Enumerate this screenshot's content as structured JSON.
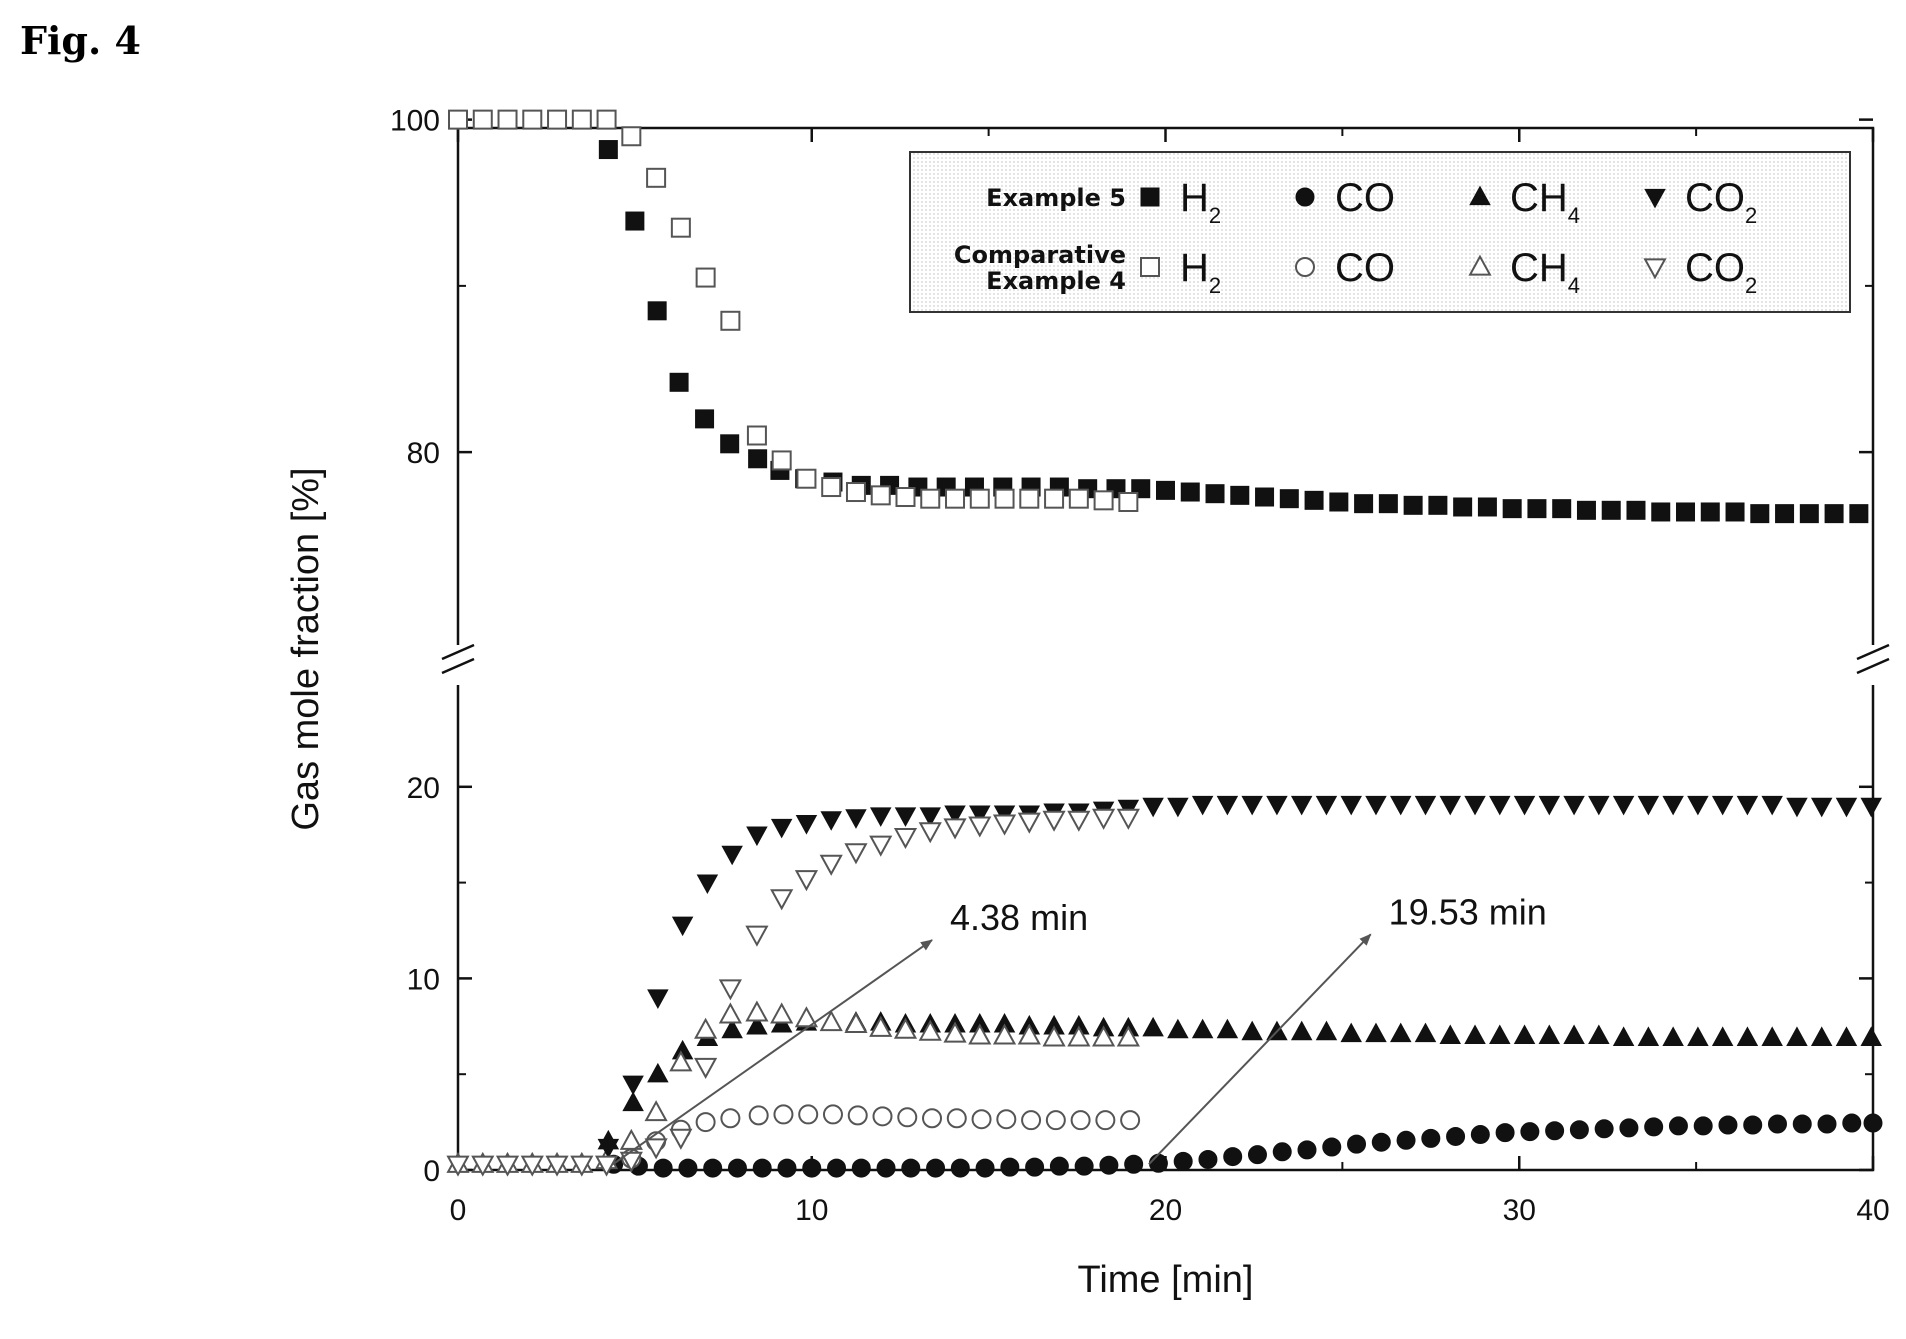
{
  "figure_label": "Fig. 4",
  "chart_data": {
    "type": "scatter",
    "xlabel": "Time [min]",
    "ylabel": "Gas mole fraction [%]",
    "xlim": [
      0,
      40
    ],
    "y_break": {
      "lower": [
        0,
        24
      ],
      "upper": [
        68,
        101
      ]
    },
    "x_ticks": [
      "0",
      "10",
      "20",
      "30",
      "40"
    ],
    "y_ticks": [
      "0",
      "10",
      "20",
      "80",
      "100"
    ],
    "legend": {
      "placement": "top-right",
      "groups": [
        {
          "label_lines": [
            "Example 5"
          ],
          "filled": true
        },
        {
          "label_lines": [
            "Comparative",
            "Example 4"
          ],
          "filled": false
        }
      ],
      "species": [
        {
          "base": "H",
          "sub": "2",
          "marker": "square"
        },
        {
          "base": "CO",
          "sub": "",
          "marker": "circle"
        },
        {
          "base": "CH",
          "sub": "4",
          "marker": "triangle-up"
        },
        {
          "base": "CO",
          "sub": "2",
          "marker": "triangle-down"
        }
      ]
    },
    "annotations": [
      {
        "text": "4.38 min",
        "from": [
          4.38,
          0.3
        ],
        "to": [
          13.4,
          12.0
        ]
      },
      {
        "text": "19.53 min",
        "from": [
          19.53,
          0.3
        ],
        "to": [
          25.8,
          12.3
        ]
      }
    ],
    "series": [
      {
        "name": "H2",
        "group": "Example 5",
        "marker": "square",
        "filled": true,
        "x": [
          4.25,
          5.0,
          5.63,
          6.25,
          6.97,
          7.68,
          8.47,
          9.1,
          9.8,
          10.6,
          11.4,
          12.2,
          13.0,
          13.8,
          14.6,
          15.4,
          16.2,
          17.0,
          17.8,
          18.6,
          19.3,
          20.0,
          20.7,
          21.4,
          22.1,
          22.8,
          23.5,
          24.2,
          24.9,
          25.6,
          26.3,
          27.0,
          27.7,
          28.4,
          29.1,
          29.8,
          30.5,
          31.2,
          31.9,
          32.6,
          33.3,
          34.0,
          34.7,
          35.4,
          36.1,
          36.8,
          37.5,
          38.2,
          38.9,
          39.6
        ],
        "y": [
          98.2,
          93.9,
          88.5,
          84.2,
          82.0,
          80.5,
          79.6,
          78.9,
          78.4,
          78.2,
          78.0,
          78.0,
          77.9,
          77.9,
          77.9,
          77.9,
          77.9,
          77.9,
          77.8,
          77.8,
          77.8,
          77.7,
          77.6,
          77.5,
          77.4,
          77.3,
          77.2,
          77.1,
          77.0,
          76.9,
          76.9,
          76.8,
          76.8,
          76.7,
          76.7,
          76.6,
          76.6,
          76.6,
          76.5,
          76.5,
          76.5,
          76.4,
          76.4,
          76.4,
          76.4,
          76.3,
          76.3,
          76.3,
          76.3,
          76.3
        ]
      },
      {
        "name": "H2",
        "group": "Comparative Example 4",
        "marker": "square",
        "filled": false,
        "x": [
          0.0,
          0.7,
          1.4,
          2.1,
          2.8,
          3.5,
          4.2,
          4.9,
          5.6,
          6.3,
          7.0,
          7.7,
          8.45,
          9.15,
          9.85,
          10.55,
          11.25,
          11.95,
          12.65,
          13.35,
          14.05,
          14.75,
          15.45,
          16.15,
          16.85,
          17.55,
          18.25,
          18.95
        ],
        "y": [
          100.0,
          100.0,
          100.0,
          100.0,
          100.0,
          100.0,
          100.0,
          99.0,
          96.5,
          93.5,
          90.5,
          87.9,
          81.0,
          79.5,
          78.4,
          77.9,
          77.6,
          77.4,
          77.3,
          77.2,
          77.2,
          77.2,
          77.2,
          77.2,
          77.2,
          77.2,
          77.1,
          77.0
        ]
      },
      {
        "name": "CO",
        "group": "Example 5",
        "marker": "circle",
        "filled": true,
        "x": [
          4.4,
          5.1,
          5.8,
          6.5,
          7.2,
          7.9,
          8.6,
          9.3,
          10.0,
          10.7,
          11.4,
          12.1,
          12.8,
          13.5,
          14.2,
          14.9,
          15.6,
          16.3,
          17.0,
          17.7,
          18.4,
          19.1,
          19.8,
          20.5,
          21.2,
          21.9,
          22.6,
          23.3,
          24.0,
          24.7,
          25.4,
          26.1,
          26.8,
          27.5,
          28.2,
          28.9,
          29.6,
          30.3,
          31.0,
          31.7,
          32.4,
          33.1,
          33.8,
          34.5,
          35.2,
          35.9,
          36.6,
          37.3,
          38.0,
          38.7,
          39.4,
          40.0
        ],
        "y": [
          0.3,
          0.2,
          0.1,
          0.1,
          0.1,
          0.1,
          0.1,
          0.1,
          0.1,
          0.1,
          0.1,
          0.1,
          0.1,
          0.1,
          0.1,
          0.1,
          0.15,
          0.15,
          0.2,
          0.2,
          0.25,
          0.3,
          0.35,
          0.45,
          0.55,
          0.7,
          0.8,
          0.95,
          1.05,
          1.2,
          1.35,
          1.45,
          1.55,
          1.65,
          1.75,
          1.85,
          1.95,
          2.0,
          2.05,
          2.1,
          2.15,
          2.2,
          2.25,
          2.3,
          2.3,
          2.35,
          2.35,
          2.4,
          2.4,
          2.4,
          2.45,
          2.45
        ]
      },
      {
        "name": "CO",
        "group": "Comparative Example 4",
        "marker": "circle",
        "filled": false,
        "x": [
          4.9,
          5.6,
          6.3,
          7.0,
          7.7,
          8.5,
          9.2,
          9.9,
          10.6,
          11.3,
          12.0,
          12.7,
          13.4,
          14.1,
          14.8,
          15.5,
          16.2,
          16.9,
          17.6,
          18.3,
          19.0
        ],
        "y": [
          0.6,
          1.5,
          2.1,
          2.5,
          2.7,
          2.85,
          2.9,
          2.9,
          2.9,
          2.85,
          2.8,
          2.75,
          2.7,
          2.7,
          2.65,
          2.65,
          2.6,
          2.6,
          2.6,
          2.6,
          2.6
        ]
      },
      {
        "name": "CH4",
        "group": "Example 5",
        "marker": "triangle-up",
        "filled": true,
        "x": [
          4.25,
          4.95,
          5.65,
          6.35,
          7.05,
          7.75,
          8.45,
          9.15,
          9.85,
          10.55,
          11.25,
          11.95,
          12.65,
          13.35,
          14.05,
          14.75,
          15.45,
          16.15,
          16.85,
          17.55,
          18.25,
          18.95,
          19.65,
          20.35,
          21.05,
          21.75,
          22.45,
          23.15,
          23.85,
          24.55,
          25.25,
          25.95,
          26.65,
          27.35,
          28.05,
          28.75,
          29.45,
          30.15,
          30.85,
          31.55,
          32.25,
          32.95,
          33.65,
          34.35,
          35.05,
          35.75,
          36.45,
          37.15,
          37.85,
          38.55,
          39.25,
          39.95
        ],
        "y": [
          1.5,
          3.5,
          5.0,
          6.2,
          6.9,
          7.3,
          7.5,
          7.6,
          7.7,
          7.7,
          7.7,
          7.7,
          7.6,
          7.6,
          7.6,
          7.6,
          7.6,
          7.5,
          7.5,
          7.5,
          7.4,
          7.4,
          7.4,
          7.3,
          7.3,
          7.3,
          7.2,
          7.2,
          7.2,
          7.2,
          7.1,
          7.1,
          7.1,
          7.1,
          7.0,
          7.0,
          7.0,
          7.0,
          7.0,
          7.0,
          7.0,
          6.9,
          6.9,
          6.9,
          6.9,
          6.9,
          6.9,
          6.9,
          6.9,
          6.9,
          6.9,
          6.9
        ]
      },
      {
        "name": "CH4",
        "group": "Comparative Example 4",
        "marker": "triangle-up",
        "filled": false,
        "x": [
          0.0,
          0.7,
          1.4,
          2.1,
          2.8,
          3.5,
          4.2,
          4.9,
          5.6,
          6.3,
          7.0,
          7.7,
          8.45,
          9.15,
          9.85,
          10.55,
          11.25,
          11.95,
          12.65,
          13.35,
          14.05,
          14.75,
          15.45,
          16.15,
          16.85,
          17.55,
          18.25,
          18.95
        ],
        "y": [
          0.3,
          0.3,
          0.3,
          0.3,
          0.3,
          0.3,
          0.5,
          1.5,
          3.0,
          5.6,
          7.3,
          8.1,
          8.2,
          8.1,
          7.9,
          7.7,
          7.6,
          7.4,
          7.3,
          7.2,
          7.1,
          7.0,
          7.0,
          7.0,
          6.9,
          6.9,
          6.9,
          6.9
        ]
      },
      {
        "name": "CO2",
        "group": "Example 5",
        "marker": "triangle-down",
        "filled": true,
        "x": [
          4.25,
          4.95,
          5.65,
          6.35,
          7.05,
          7.75,
          8.45,
          9.15,
          9.85,
          10.55,
          11.25,
          11.95,
          12.65,
          13.35,
          14.05,
          14.75,
          15.45,
          16.15,
          16.85,
          17.55,
          18.25,
          18.95,
          19.65,
          20.35,
          21.05,
          21.75,
          22.45,
          23.15,
          23.85,
          24.55,
          25.25,
          25.95,
          26.65,
          27.35,
          28.05,
          28.75,
          29.45,
          30.15,
          30.85,
          31.55,
          32.25,
          32.95,
          33.65,
          34.35,
          35.05,
          35.75,
          36.45,
          37.15,
          37.85,
          38.55,
          39.25,
          39.95
        ],
        "y": [
          1.2,
          4.5,
          9.0,
          12.8,
          15.0,
          16.5,
          17.5,
          17.9,
          18.1,
          18.3,
          18.4,
          18.5,
          18.5,
          18.5,
          18.6,
          18.6,
          18.6,
          18.6,
          18.7,
          18.7,
          18.8,
          18.9,
          19.0,
          19.0,
          19.1,
          19.1,
          19.1,
          19.1,
          19.1,
          19.1,
          19.1,
          19.1,
          19.1,
          19.1,
          19.1,
          19.1,
          19.1,
          19.1,
          19.1,
          19.1,
          19.1,
          19.1,
          19.1,
          19.1,
          19.1,
          19.1,
          19.1,
          19.1,
          19.0,
          19.0,
          19.0,
          19.0
        ]
      },
      {
        "name": "CO2",
        "group": "Comparative Example 4",
        "marker": "triangle-down",
        "filled": false,
        "x": [
          0.0,
          0.7,
          1.4,
          2.1,
          2.8,
          3.5,
          4.2,
          4.9,
          5.6,
          6.3,
          7.0,
          7.7,
          8.45,
          9.15,
          9.85,
          10.55,
          11.25,
          11.95,
          12.65,
          13.35,
          14.05,
          14.75,
          15.45,
          16.15,
          16.85,
          17.55,
          18.25,
          18.95
        ],
        "y": [
          0.3,
          0.3,
          0.3,
          0.3,
          0.3,
          0.3,
          0.3,
          0.5,
          1.2,
          1.7,
          5.4,
          9.5,
          12.3,
          14.2,
          15.2,
          16.0,
          16.6,
          17.0,
          17.4,
          17.7,
          17.9,
          18.0,
          18.1,
          18.2,
          18.3,
          18.3,
          18.4,
          18.4
        ]
      }
    ]
  }
}
